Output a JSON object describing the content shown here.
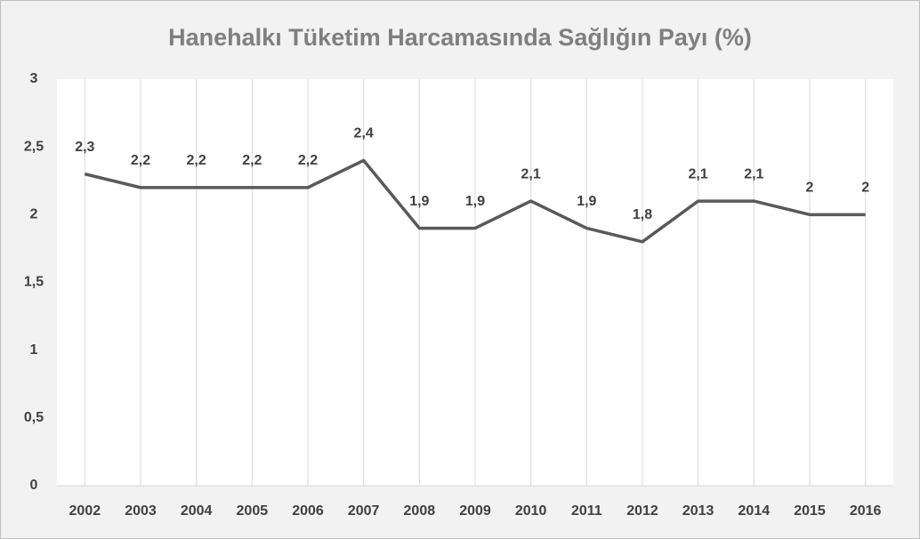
{
  "chart_data": {
    "type": "line",
    "title": "Hanehalkı Tüketim Harcamasında Sağlığın Payı (%)",
    "categories": [
      "2002",
      "2003",
      "2004",
      "2005",
      "2006",
      "2007",
      "2008",
      "2009",
      "2010",
      "2011",
      "2012",
      "2013",
      "2014",
      "2015",
      "2016"
    ],
    "values": [
      2.3,
      2.2,
      2.2,
      2.2,
      2.2,
      2.4,
      1.9,
      1.9,
      2.1,
      1.9,
      1.8,
      2.1,
      2.1,
      2,
      2
    ],
    "value_labels": [
      "2,3",
      "2,2",
      "2,2",
      "2,2",
      "2,2",
      "2,4",
      "1,9",
      "1,9",
      "2,1",
      "1,9",
      "1,8",
      "2,1",
      "2,1",
      "2",
      "2"
    ],
    "color": "#595959",
    "ylim": [
      0,
      3
    ],
    "yticks": [
      0,
      {
        "value": 0.5,
        "label": "0,5"
      },
      1,
      {
        "value": 1.5,
        "label": "1,5"
      },
      2,
      {
        "value": 2.5,
        "label": "2,5"
      },
      3
    ],
    "grid": true
  }
}
